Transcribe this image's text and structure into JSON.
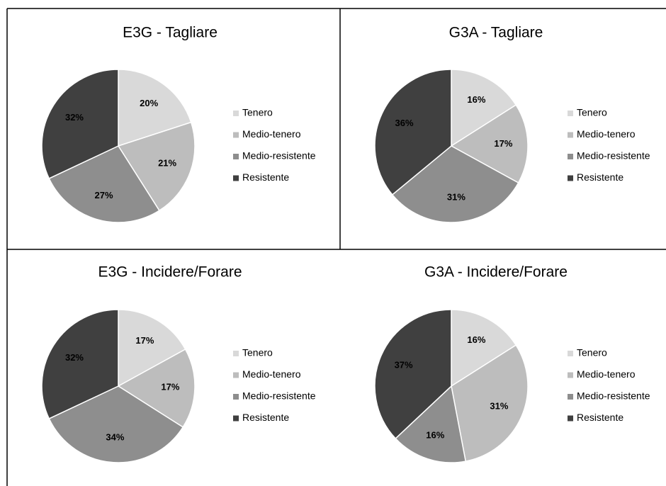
{
  "chart_data": [
    {
      "type": "pie",
      "title": "E3G - Tagliare",
      "categories": [
        "Tenero",
        "Medio-tenero",
        "Medio-resistente",
        "Resistente"
      ],
      "values": [
        20,
        21,
        27,
        32
      ],
      "value_labels": [
        "20%",
        "21%",
        "27%",
        "32%"
      ],
      "colors": [
        "#d9d9d9",
        "#bdbdbd",
        "#8e8e8e",
        "#404040"
      ]
    },
    {
      "type": "pie",
      "title": "G3A - Tagliare",
      "categories": [
        "Tenero",
        "Medio-tenero",
        "Medio-resistente",
        "Resistente"
      ],
      "values": [
        16,
        17,
        31,
        36
      ],
      "value_labels": [
        "16%",
        "17%",
        "31%",
        "36%"
      ],
      "colors": [
        "#d9d9d9",
        "#bdbdbd",
        "#8e8e8e",
        "#404040"
      ]
    },
    {
      "type": "pie",
      "title": "E3G - Incidere/Forare",
      "categories": [
        "Tenero",
        "Medio-tenero",
        "Medio-resistente",
        "Resistente"
      ],
      "values": [
        17,
        17,
        34,
        32
      ],
      "value_labels": [
        "17%",
        "17%",
        "34%",
        "32%"
      ],
      "colors": [
        "#d9d9d9",
        "#bdbdbd",
        "#8e8e8e",
        "#404040"
      ]
    },
    {
      "type": "pie",
      "title": "G3A - Incidere/Forare",
      "categories": [
        "Tenero",
        "Medio-tenero",
        "Medio-resistente",
        "Resistente"
      ],
      "values": [
        16,
        31,
        16,
        37
      ],
      "value_labels": [
        "16%",
        "31%",
        "16%",
        "37%"
      ],
      "colors": [
        "#d9d9d9",
        "#bdbdbd",
        "#8e8e8e",
        "#404040"
      ]
    }
  ]
}
